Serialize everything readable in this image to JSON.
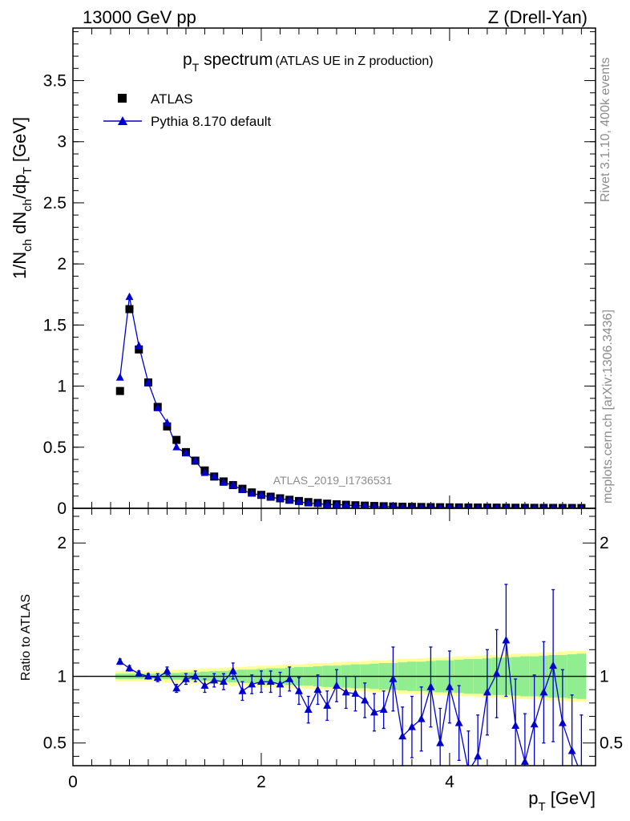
{
  "header": {
    "left": "13000 GeV pp",
    "right": "Z (Drell-Yan)"
  },
  "side_labels": {
    "rivet": "Rivet 3.1.10,  400k events",
    "mcplots": "mcplots.cern.ch [arXiv:1306.3436]"
  },
  "watermark": "ATLAS_2019_I1736531",
  "colors": {
    "mc": "#0000cc",
    "data": "#000000",
    "band_inner": "#90ee90",
    "band_outer": "#ffff99"
  },
  "chart_data": [
    {
      "type": "scatter",
      "panel": "main",
      "title": {
        "p": "p",
        "sub": "T",
        "rest": " spectrum",
        "small": "(ATLAS UE in Z production)"
      },
      "ylabel": {
        "a": "1/N",
        "a_sub": "ch",
        "b": " dN",
        "b_sub": "ch",
        "c": "/dp",
        "c_sub": "T",
        "d": " [GeV]"
      },
      "xlim": [
        0,
        5.55
      ],
      "ylim": [
        0,
        3.93
      ],
      "yticks": [
        {
          "v": 0,
          "label": "0"
        },
        {
          "v": 0.5,
          "label": "0.5"
        },
        {
          "v": 1,
          "label": "1"
        },
        {
          "v": 1.5,
          "label": "1.5"
        },
        {
          "v": 2,
          "label": "2"
        },
        {
          "v": 2.5,
          "label": "2.5"
        },
        {
          "v": 3,
          "label": "3"
        },
        {
          "v": 3.5,
          "label": "3.5"
        }
      ],
      "legend": {
        "placement": "top-left",
        "data_label": "ATLAS",
        "mc_label": "Pythia 8.170 default"
      },
      "x": [
        0.5,
        0.6,
        0.7,
        0.8,
        0.9,
        1.0,
        1.1,
        1.2,
        1.3,
        1.4,
        1.5,
        1.6,
        1.7,
        1.8,
        1.9,
        2.0,
        2.1,
        2.2,
        2.3,
        2.4,
        2.5,
        2.6,
        2.7,
        2.8,
        2.9,
        3.0,
        3.1,
        3.2,
        3.3,
        3.4,
        3.5,
        3.6,
        3.7,
        3.8,
        3.9,
        4.0,
        4.1,
        4.2,
        4.3,
        4.4,
        4.5,
        4.6,
        4.7,
        4.8,
        4.9,
        5.0,
        5.1,
        5.2,
        5.3,
        5.4
      ],
      "series": [
        {
          "name": "ATLAS",
          "marker": "square",
          "values": [
            0.96,
            1.63,
            1.3,
            1.03,
            0.83,
            0.67,
            0.56,
            0.46,
            0.39,
            0.31,
            0.26,
            0.22,
            0.19,
            0.16,
            0.13,
            0.11,
            0.095,
            0.082,
            0.07,
            0.06,
            0.051,
            0.044,
            0.038,
            0.033,
            0.029,
            0.025,
            0.022,
            0.019,
            0.017,
            0.015,
            0.013,
            0.012,
            0.011,
            0.01,
            0.009,
            0.008,
            0.0075,
            0.007,
            0.0065,
            0.006,
            0.0055,
            0.005,
            0.0046,
            0.0042,
            0.0039,
            0.0036,
            0.0033,
            0.003,
            0.0028,
            0.0026
          ]
        },
        {
          "name": "Pythia 8.170 default",
          "marker": "triangle",
          "values": [
            1.07,
            1.73,
            1.33,
            1.03,
            0.82,
            0.7,
            0.5,
            0.45,
            0.39,
            0.29,
            0.26,
            0.21,
            0.19,
            0.15,
            0.12,
            0.11,
            0.09,
            0.08,
            0.068,
            0.054,
            0.041,
            0.04,
            0.03,
            0.031,
            0.026,
            0.022,
            0.019,
            0.014,
            0.013,
            0.015,
            0.007,
            0.0075,
            0.0075,
            0.009,
            0.005,
            0.008,
            0.005,
            0.002,
            0.0026,
            0.0053,
            0.0056,
            0.0065,
            0.003,
            0.0015,
            0.0025,
            0.0032,
            0.0036,
            0.002,
            0.0018,
            0.0012
          ]
        }
      ]
    },
    {
      "type": "scatter",
      "panel": "ratio",
      "ylabel": "Ratio to ATLAS",
      "xlabel": {
        "p": "p",
        "sub": "T",
        "rest": " [GeV]"
      },
      "xlim": [
        0,
        5.55
      ],
      "ylim": [
        0.33,
        2.26
      ],
      "xticks": [
        {
          "v": 0,
          "label": "0"
        },
        {
          "v": 2,
          "label": "2"
        },
        {
          "v": 4,
          "label": "4"
        }
      ],
      "yticks": [
        {
          "v": 0.5,
          "label": "0.5"
        },
        {
          "v": 1,
          "label": "1"
        },
        {
          "v": 2,
          "label": "2"
        }
      ],
      "reference": 1.0,
      "band_inner": [
        [
          0.02,
          0.04
        ],
        [
          0.02,
          0.04
        ],
        [
          0.02,
          0.04
        ],
        [
          0.02,
          0.04
        ],
        [
          0.02,
          0.04
        ],
        [
          0.02,
          0.045
        ],
        [
          0.025,
          0.05
        ],
        [
          0.03,
          0.05
        ],
        [
          0.03,
          0.055
        ],
        [
          0.035,
          0.06
        ],
        [
          0.04,
          0.06
        ],
        [
          0.04,
          0.065
        ],
        [
          0.045,
          0.07
        ],
        [
          0.05,
          0.07
        ],
        [
          0.05,
          0.075
        ],
        [
          0.055,
          0.08
        ],
        [
          0.06,
          0.08
        ],
        [
          0.06,
          0.085
        ],
        [
          0.065,
          0.09
        ],
        [
          0.07,
          0.09
        ],
        [
          0.07,
          0.095
        ],
        [
          0.075,
          0.1
        ],
        [
          0.08,
          0.1
        ],
        [
          0.08,
          0.105
        ],
        [
          0.085,
          0.11
        ],
        [
          0.09,
          0.11
        ],
        [
          0.09,
          0.115
        ],
        [
          0.095,
          0.12
        ],
        [
          0.1,
          0.12
        ],
        [
          0.1,
          0.125
        ],
        [
          0.105,
          0.13
        ],
        [
          0.11,
          0.13
        ],
        [
          0.11,
          0.135
        ],
        [
          0.115,
          0.14
        ],
        [
          0.12,
          0.14
        ],
        [
          0.12,
          0.145
        ],
        [
          0.125,
          0.15
        ],
        [
          0.13,
          0.15
        ],
        [
          0.13,
          0.155
        ],
        [
          0.135,
          0.16
        ],
        [
          0.14,
          0.16
        ],
        [
          0.14,
          0.165
        ],
        [
          0.145,
          0.17
        ],
        [
          0.15,
          0.17
        ],
        [
          0.15,
          0.175
        ],
        [
          0.155,
          0.18
        ],
        [
          0.16,
          0.18
        ],
        [
          0.16,
          0.185
        ],
        [
          0.165,
          0.19
        ],
        [
          0.17,
          0.19
        ]
      ],
      "series": [
        {
          "name": "Pythia 8.170 default",
          "values": [
            1.11,
            1.06,
            1.02,
            1.0,
            0.99,
            1.04,
            0.91,
            0.98,
            1.0,
            0.93,
            0.97,
            0.96,
            1.04,
            0.89,
            0.94,
            0.96,
            0.96,
            0.94,
            0.98,
            0.89,
            0.75,
            0.9,
            0.78,
            0.93,
            0.88,
            0.87,
            0.82,
            0.73,
            0.75,
            0.98,
            0.55,
            0.62,
            0.68,
            0.92,
            0.5,
            0.92,
            0.65,
            0.29,
            0.4,
            0.88,
            1.02,
            1.27,
            0.63,
            0.36,
            0.64,
            0.88,
            1.08,
            0.65,
            0.44,
            0.26
          ],
          "errors": [
            0.02,
            0.02,
            0.02,
            0.02,
            0.03,
            0.03,
            0.03,
            0.04,
            0.04,
            0.05,
            0.05,
            0.06,
            0.06,
            0.07,
            0.07,
            0.08,
            0.08,
            0.09,
            0.09,
            0.1,
            0.1,
            0.11,
            0.11,
            0.12,
            0.12,
            0.13,
            0.13,
            0.14,
            0.14,
            0.24,
            0.22,
            0.23,
            0.24,
            0.3,
            0.26,
            0.27,
            0.28,
            0.3,
            0.31,
            0.32,
            0.33,
            0.42,
            0.35,
            0.36,
            0.37,
            0.38,
            0.57,
            0.4,
            0.42,
            0.45
          ]
        }
      ]
    }
  ]
}
